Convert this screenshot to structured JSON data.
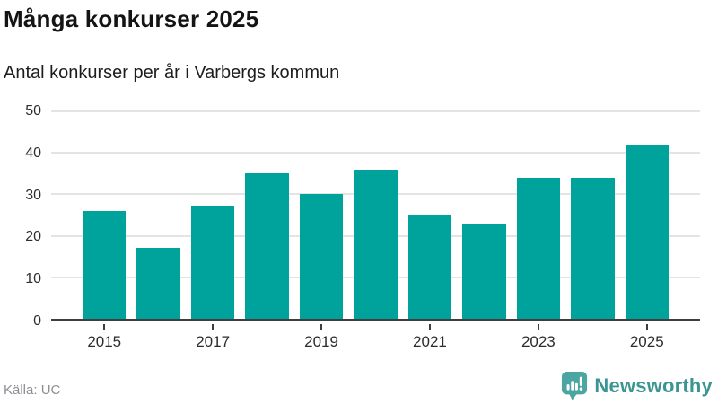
{
  "header": {
    "title": "Många konkurser 2025",
    "subtitle": "Antal konkurser per år i Varbergs kommun"
  },
  "chart_data": {
    "type": "bar",
    "categories": [
      "2015",
      "2016",
      "2017",
      "2018",
      "2019",
      "2020",
      "2021",
      "2022",
      "2023",
      "2024",
      "2025"
    ],
    "values": [
      26,
      17,
      27,
      35,
      30,
      36,
      25,
      23,
      34,
      34,
      42
    ],
    "title": "Många konkurser 2025",
    "subtitle": "Antal konkurser per år i Varbergs kommun",
    "xlabel": "",
    "ylabel": "",
    "ylim": [
      0,
      50
    ],
    "yticks": [
      0,
      10,
      20,
      30,
      40,
      50
    ],
    "xtick_labels": [
      "2015",
      "2017",
      "2019",
      "2021",
      "2023",
      "2025"
    ],
    "xtick_every": 2,
    "grid": true,
    "legend": false,
    "bar_color": "#00a39b"
  },
  "footer": {
    "source": "Källa: UC",
    "brand": "Newsworthy"
  },
  "colors": {
    "bar": "#00a39b",
    "grid": "#e4e4e4",
    "axis": "#3e3e3e",
    "brand_text": "#3b9691",
    "brand_icon": "#4ba6a1",
    "source_text": "#8d8d93"
  }
}
